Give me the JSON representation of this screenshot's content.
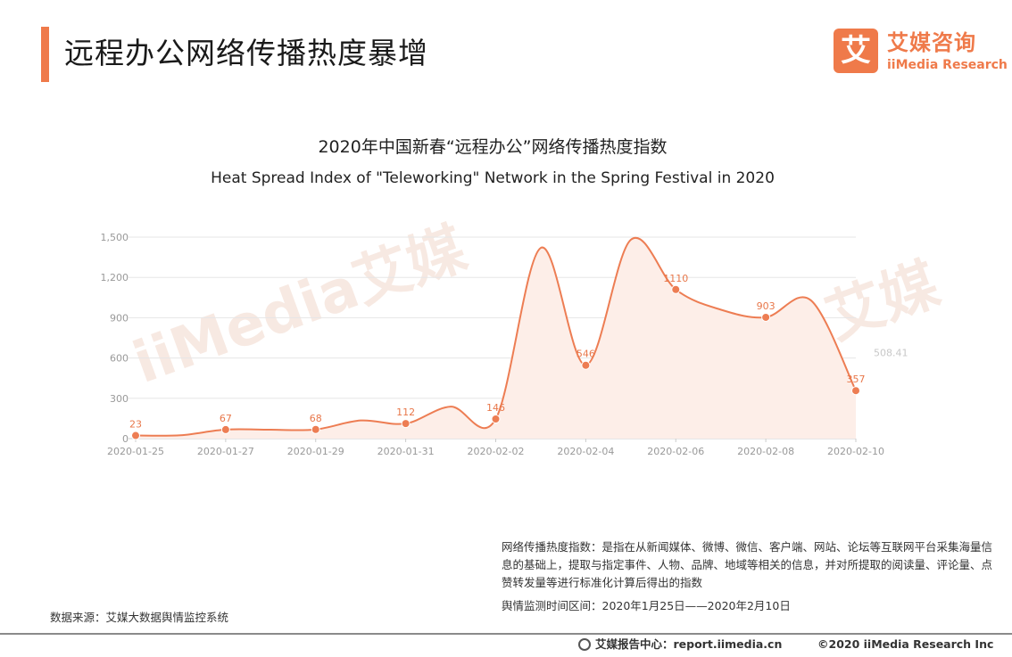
{
  "page": {
    "title": "远程办公网络传播热度暴增"
  },
  "logo": {
    "mark": "艾",
    "name_cn": "艾媒咨询",
    "name_en": "iiMedia Research"
  },
  "colors": {
    "accent": "#ef7a4a",
    "line": "#ed7d53",
    "fill": "#fdeee8"
  },
  "watermark": {
    "left": "iiMedia艾媒",
    "right": "iiMedia艾媒"
  },
  "chart_data": {
    "type": "area",
    "title": "2020年中国新春“远程办公”网络传播热度指数",
    "subtitle": "Heat Spread Index of \"Teleworking\" Network in the Spring Festival in 2020",
    "x": [
      "2020-01-25",
      "2020-01-26",
      "2020-01-27",
      "2020-01-28",
      "2020-01-29",
      "2020-01-30",
      "2020-01-31",
      "2020-02-01",
      "2020-02-02",
      "2020-02-03",
      "2020-02-04",
      "2020-02-05",
      "2020-02-06",
      "2020-02-07",
      "2020-02-08",
      "2020-02-09",
      "2020-02-10"
    ],
    "x_tick_labels": [
      "2020-01-25",
      "2020-01-27",
      "2020-01-29",
      "2020-01-31",
      "2020-02-02",
      "2020-02-04",
      "2020-02-06",
      "2020-02-08",
      "2020-02-10"
    ],
    "series": [
      {
        "values": [
          23,
          25,
          67,
          66,
          68,
          135,
          112,
          238,
          146,
          1420,
          546,
          1480,
          1110,
          960,
          903,
          1030,
          357
        ],
        "labeled_points": [
          {
            "x": "2020-01-25",
            "y": 23,
            "label": "23"
          },
          {
            "x": "2020-01-27",
            "y": 67,
            "label": "67"
          },
          {
            "x": "2020-01-29",
            "y": 68,
            "label": "68"
          },
          {
            "x": "2020-01-31",
            "y": 112,
            "label": "112"
          },
          {
            "x": "2020-02-02",
            "y": 146,
            "label": "146"
          },
          {
            "x": "2020-02-04",
            "y": 546,
            "label": "546"
          },
          {
            "x": "2020-02-06",
            "y": 1110,
            "label": "1110"
          },
          {
            "x": "2020-02-08",
            "y": 903,
            "label": "903"
          },
          {
            "x": "2020-02-10",
            "y": 357,
            "label": "357"
          }
        ]
      }
    ],
    "ylim": [
      0,
      1500
    ],
    "yticks": [
      0,
      300,
      600,
      900,
      1200,
      1500
    ],
    "ytick_labels": [
      "0",
      "300",
      "600",
      "900",
      "1,200",
      "1,500"
    ],
    "grid": true,
    "annotation": {
      "x": "2020-02-10",
      "y": 508.41,
      "label": "508.41"
    }
  },
  "note": {
    "definition": "网络传播热度指数：是指在从新闻媒体、微博、微信、客户端、网站、论坛等互联网平台采集海量信息的基础上，提取与指定事件、人物、品牌、地域等相关的信息，并对所提取的阅读量、评论量、点赞转发量等进行标准化计算后得出的指数",
    "period": "舆情监测时间区间：2020年1月25日——2020年2月10日"
  },
  "source": "数据来源：艾媒大数据舆情监控系统",
  "footer": {
    "center": "艾媒报告中心：report.iimedia.cn",
    "copyright": "©2020  iiMedia Research Inc"
  }
}
